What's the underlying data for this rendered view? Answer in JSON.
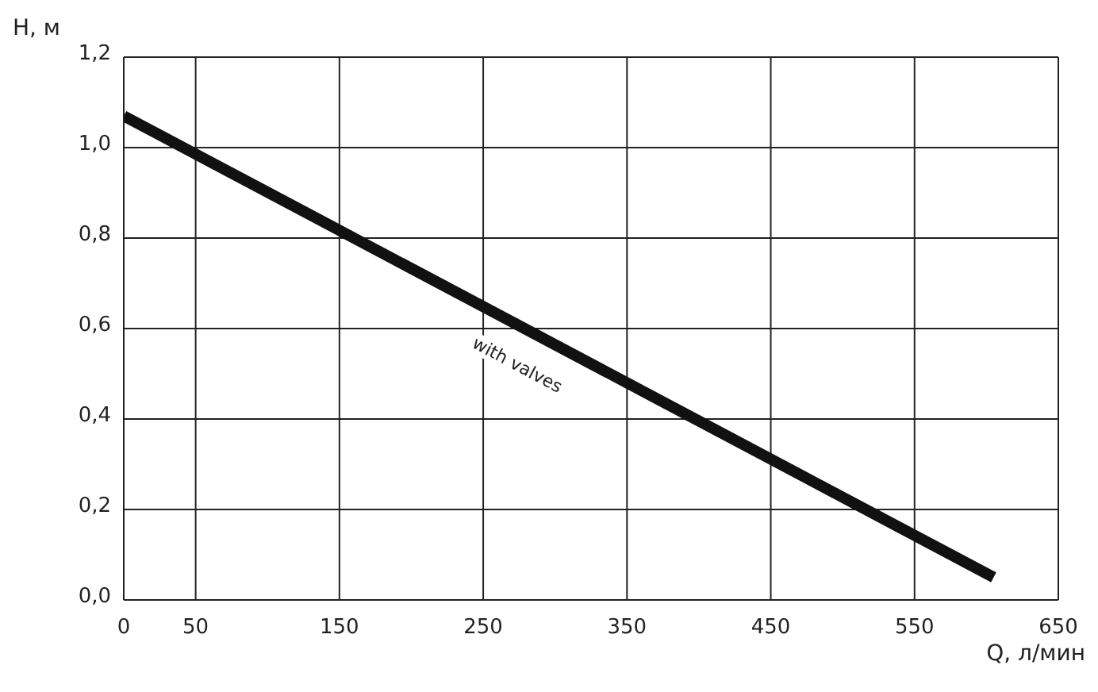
{
  "chart_data": {
    "type": "line",
    "xlabel": "Q, л/мин",
    "ylabel": "H, м",
    "x": [
      0,
      605
    ],
    "series": [
      {
        "color": "#111111",
        "values": [
          1.07,
          0.05
        ]
      }
    ],
    "xlim": [
      0,
      650
    ],
    "xticks": [
      0,
      50,
      150,
      250,
      350,
      450,
      550,
      650
    ],
    "ylim": [
      0,
      1.2
    ],
    "yticks": [
      {
        "value": 0,
        "label": "0,0"
      },
      {
        "value": 0.2,
        "label": "0,2"
      },
      {
        "value": 0.4,
        "label": "0,4"
      },
      {
        "value": 0.6,
        "label": "0,6"
      },
      {
        "value": 0.8,
        "label": "0,8"
      },
      {
        "value": 1,
        "label": "1,0"
      },
      {
        "value": 1.2,
        "label": "1,2"
      }
    ],
    "grid": true,
    "marker": "none",
    "line_style": "solid",
    "annotations": [
      "with valves"
    ]
  }
}
